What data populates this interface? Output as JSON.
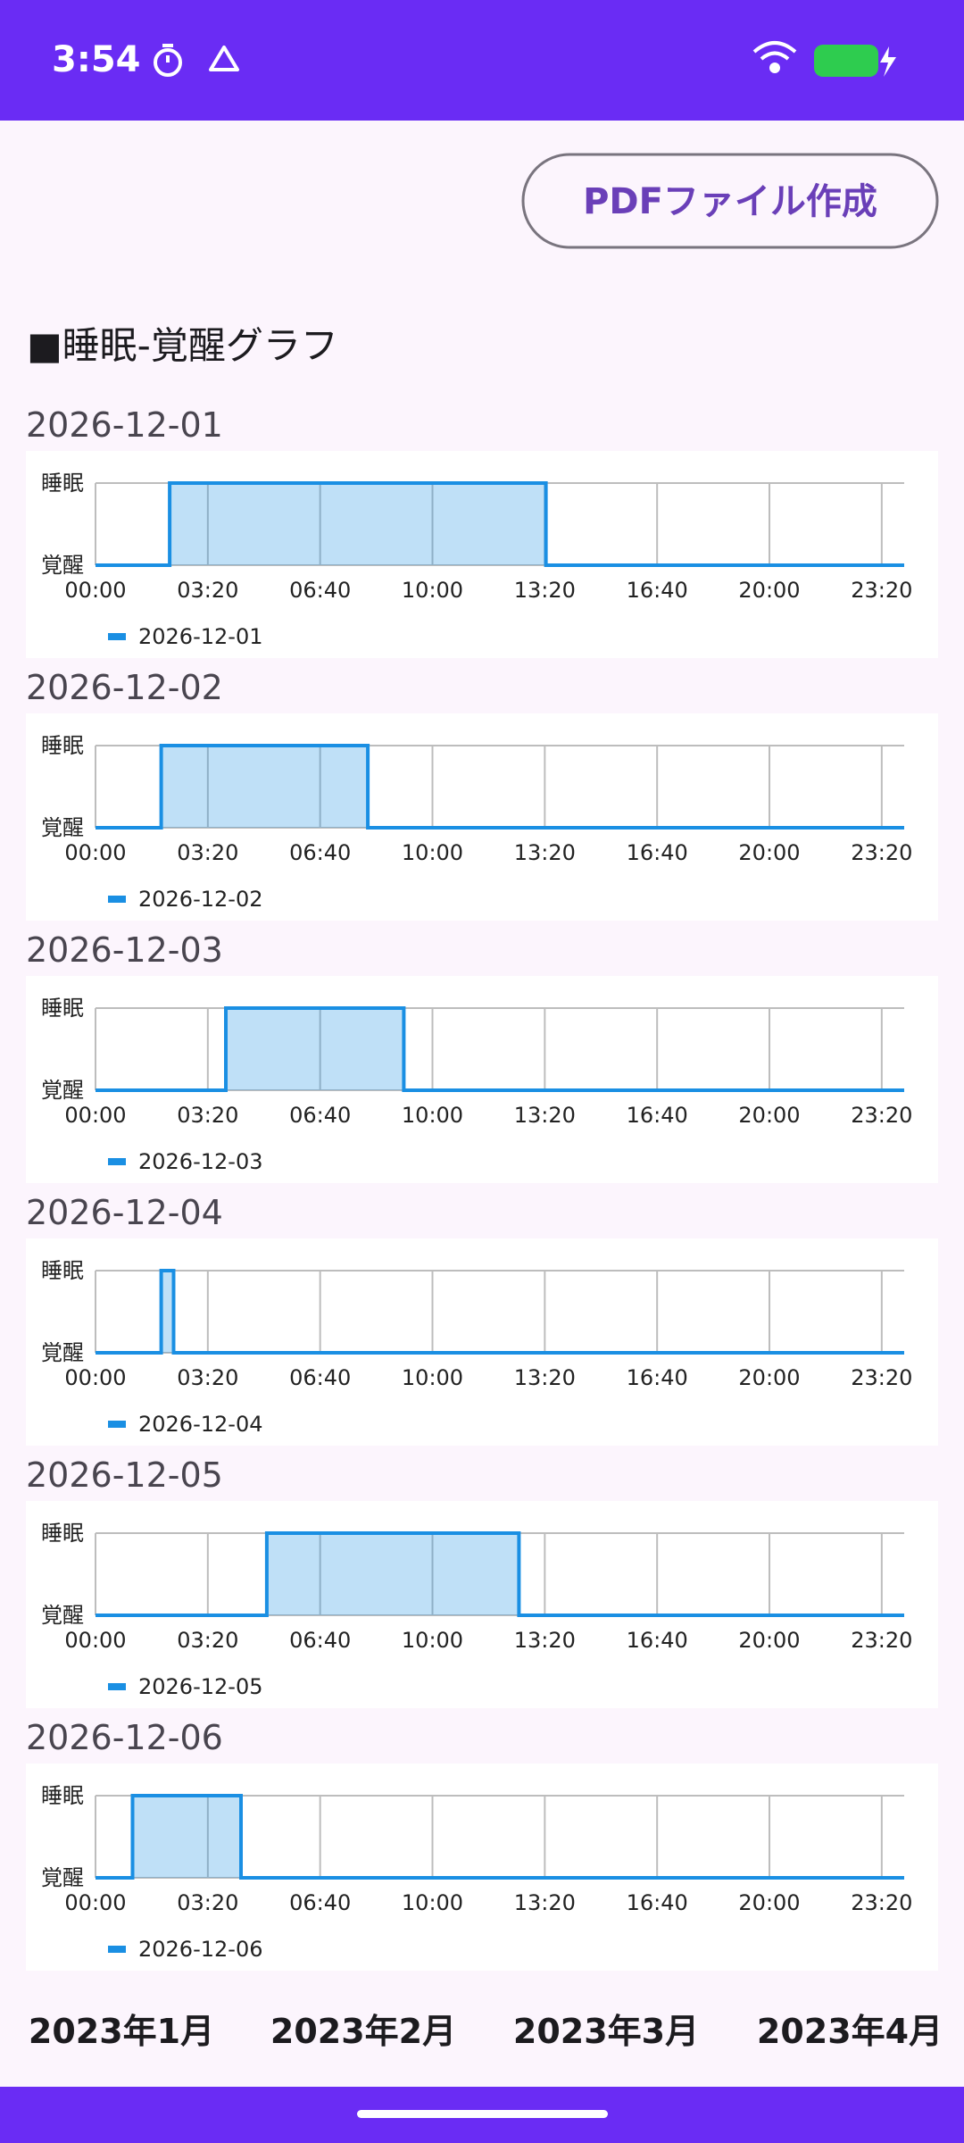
{
  "status_bar": {
    "time": "3:54"
  },
  "button": "PDFファイル作成",
  "heading": "■睡眠-覚醒グラフ",
  "chart_data": [
    {
      "type": "line",
      "title": "2026-12-01",
      "x": [
        0,
        132,
        132,
        802,
        802,
        1440
      ],
      "series": [
        {
          "name": "2026-12-01",
          "color": "#1a8fe3",
          "values": [
            0,
            0,
            1,
            1,
            0,
            0
          ]
        }
      ],
      "xlim": [
        0,
        1440
      ],
      "ylim": [
        0,
        1
      ],
      "area": true,
      "grid": true,
      "xticks": [
        {
          "value": 0,
          "label": "00:00"
        },
        {
          "value": 200,
          "label": "03:20"
        },
        {
          "value": 400,
          "label": "06:40"
        },
        {
          "value": 600,
          "label": "10:00"
        },
        {
          "value": 800,
          "label": "13:20"
        },
        {
          "value": 1000,
          "label": "16:40"
        },
        {
          "value": 1200,
          "label": "20:00"
        },
        {
          "value": 1400,
          "label": "23:20"
        }
      ],
      "yticks": [
        {
          "value": 0,
          "label": "覚醒"
        },
        {
          "value": 1,
          "label": "睡眠"
        }
      ]
    },
    {
      "type": "line",
      "title": "2026-12-02",
      "x": [
        0,
        117,
        117,
        485,
        485,
        1440
      ],
      "series": [
        {
          "name": "2026-12-02",
          "color": "#1a8fe3",
          "values": [
            0,
            0,
            1,
            1,
            0,
            0
          ]
        }
      ],
      "xlim": [
        0,
        1440
      ],
      "ylim": [
        0,
        1
      ],
      "area": true,
      "grid": true,
      "xticks": [
        {
          "value": 0,
          "label": "00:00"
        },
        {
          "value": 200,
          "label": "03:20"
        },
        {
          "value": 400,
          "label": "06:40"
        },
        {
          "value": 600,
          "label": "10:00"
        },
        {
          "value": 800,
          "label": "13:20"
        },
        {
          "value": 1000,
          "label": "16:40"
        },
        {
          "value": 1200,
          "label": "20:00"
        },
        {
          "value": 1400,
          "label": "23:20"
        }
      ],
      "yticks": [
        {
          "value": 0,
          "label": "覚醒"
        },
        {
          "value": 1,
          "label": "睡眠"
        }
      ]
    },
    {
      "type": "line",
      "title": "2026-12-03",
      "x": [
        0,
        232,
        232,
        549,
        549,
        1440
      ],
      "series": [
        {
          "name": "2026-12-03",
          "color": "#1a8fe3",
          "values": [
            0,
            0,
            1,
            1,
            0,
            0
          ]
        }
      ],
      "xlim": [
        0,
        1440
      ],
      "ylim": [
        0,
        1
      ],
      "area": true,
      "grid": true,
      "xticks": [
        {
          "value": 0,
          "label": "00:00"
        },
        {
          "value": 200,
          "label": "03:20"
        },
        {
          "value": 400,
          "label": "06:40"
        },
        {
          "value": 600,
          "label": "10:00"
        },
        {
          "value": 800,
          "label": "13:20"
        },
        {
          "value": 1000,
          "label": "16:40"
        },
        {
          "value": 1200,
          "label": "20:00"
        },
        {
          "value": 1400,
          "label": "23:20"
        }
      ],
      "yticks": [
        {
          "value": 0,
          "label": "覚醒"
        },
        {
          "value": 1,
          "label": "睡眠"
        }
      ]
    },
    {
      "type": "line",
      "title": "2026-12-04",
      "x": [
        0,
        117,
        117,
        139,
        139,
        1440
      ],
      "series": [
        {
          "name": "2026-12-04",
          "color": "#1a8fe3",
          "values": [
            0,
            0,
            1,
            1,
            0,
            0
          ]
        }
      ],
      "xlim": [
        0,
        1440
      ],
      "ylim": [
        0,
        1
      ],
      "area": true,
      "grid": true,
      "xticks": [
        {
          "value": 0,
          "label": "00:00"
        },
        {
          "value": 200,
          "label": "03:20"
        },
        {
          "value": 400,
          "label": "06:40"
        },
        {
          "value": 600,
          "label": "10:00"
        },
        {
          "value": 800,
          "label": "13:20"
        },
        {
          "value": 1000,
          "label": "16:40"
        },
        {
          "value": 1200,
          "label": "20:00"
        },
        {
          "value": 1400,
          "label": "23:20"
        }
      ],
      "yticks": [
        {
          "value": 0,
          "label": "覚醒"
        },
        {
          "value": 1,
          "label": "睡眠"
        }
      ]
    },
    {
      "type": "line",
      "title": "2026-12-05",
      "x": [
        0,
        305,
        305,
        754,
        754,
        1440
      ],
      "series": [
        {
          "name": "2026-12-05",
          "color": "#1a8fe3",
          "values": [
            0,
            0,
            1,
            1,
            0,
            0
          ]
        }
      ],
      "xlim": [
        0,
        1440
      ],
      "ylim": [
        0,
        1
      ],
      "area": true,
      "grid": true,
      "xticks": [
        {
          "value": 0,
          "label": "00:00"
        },
        {
          "value": 200,
          "label": "03:20"
        },
        {
          "value": 400,
          "label": "06:40"
        },
        {
          "value": 600,
          "label": "10:00"
        },
        {
          "value": 800,
          "label": "13:20"
        },
        {
          "value": 1000,
          "label": "16:40"
        },
        {
          "value": 1200,
          "label": "20:00"
        },
        {
          "value": 1400,
          "label": "23:20"
        }
      ],
      "yticks": [
        {
          "value": 0,
          "label": "覚醒"
        },
        {
          "value": 1,
          "label": "睡眠"
        }
      ]
    },
    {
      "type": "line",
      "title": "2026-12-06",
      "x": [
        0,
        66,
        66,
        259,
        259,
        1440
      ],
      "series": [
        {
          "name": "2026-12-06",
          "color": "#1a8fe3",
          "values": [
            0,
            0,
            1,
            1,
            0,
            0
          ]
        }
      ],
      "xlim": [
        0,
        1440
      ],
      "ylim": [
        0,
        1
      ],
      "area": true,
      "grid": true,
      "xticks": [
        {
          "value": 0,
          "label": "00:00"
        },
        {
          "value": 200,
          "label": "03:20"
        },
        {
          "value": 400,
          "label": "06:40"
        },
        {
          "value": 600,
          "label": "10:00"
        },
        {
          "value": 800,
          "label": "13:20"
        },
        {
          "value": 1000,
          "label": "16:40"
        },
        {
          "value": 1200,
          "label": "20:00"
        },
        {
          "value": 1400,
          "label": "23:20"
        }
      ],
      "yticks": [
        {
          "value": 0,
          "label": "覚醒"
        },
        {
          "value": 1,
          "label": "睡眠"
        }
      ]
    }
  ],
  "tabs": [
    "2023年1月",
    "2023年2月",
    "2023年3月",
    "2023年4月"
  ]
}
